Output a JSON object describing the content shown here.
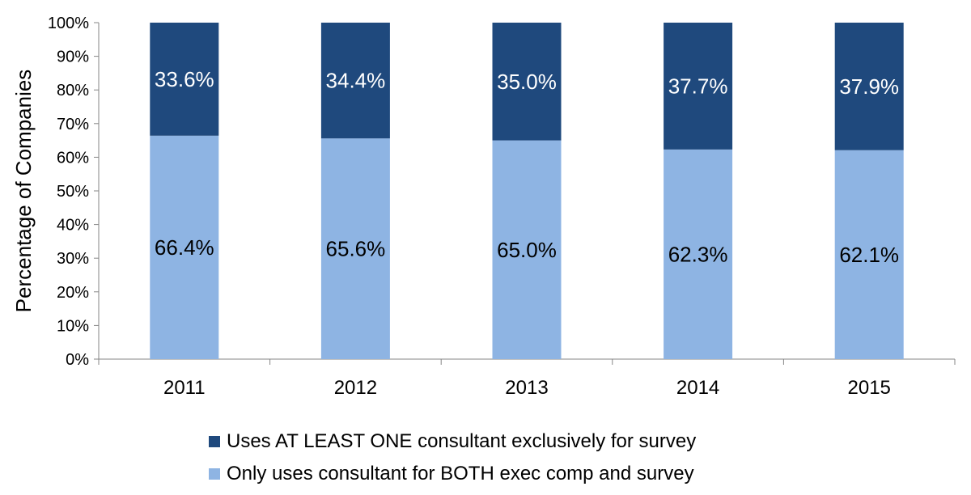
{
  "chart_data": {
    "type": "bar",
    "stacked": true,
    "title": "",
    "xlabel": "",
    "ylabel": "Percentage of Companies",
    "ylim": [
      0,
      100
    ],
    "yticks": [
      "0%",
      "10%",
      "20%",
      "30%",
      "40%",
      "50%",
      "60%",
      "70%",
      "80%",
      "90%",
      "100%"
    ],
    "categories": [
      "2011",
      "2012",
      "2013",
      "2014",
      "2015"
    ],
    "series": [
      {
        "name": "Only uses consultant for BOTH exec comp and survey",
        "color": "#8eb4e3",
        "label_color": "#000000",
        "values": [
          66.4,
          65.6,
          65.0,
          62.3,
          62.1
        ],
        "labels": [
          "66.4%",
          "65.6%",
          "65.0%",
          "62.3%",
          "62.1%"
        ]
      },
      {
        "name": "Uses AT LEAST ONE consultant exclusively for survey",
        "color": "#1f497d",
        "label_color": "#ffffff",
        "values": [
          33.6,
          34.4,
          35.0,
          37.7,
          37.9
        ],
        "labels": [
          "33.6%",
          "34.4%",
          "35.0%",
          "37.7%",
          "37.9%"
        ]
      }
    ],
    "grid": false,
    "legend_position": "bottom"
  },
  "legend": {
    "items": [
      {
        "label": "Uses AT LEAST ONE consultant exclusively for survey",
        "color": "#1f497d"
      },
      {
        "label": "Only uses consultant for BOTH exec comp and survey",
        "color": "#8eb4e3"
      }
    ]
  }
}
